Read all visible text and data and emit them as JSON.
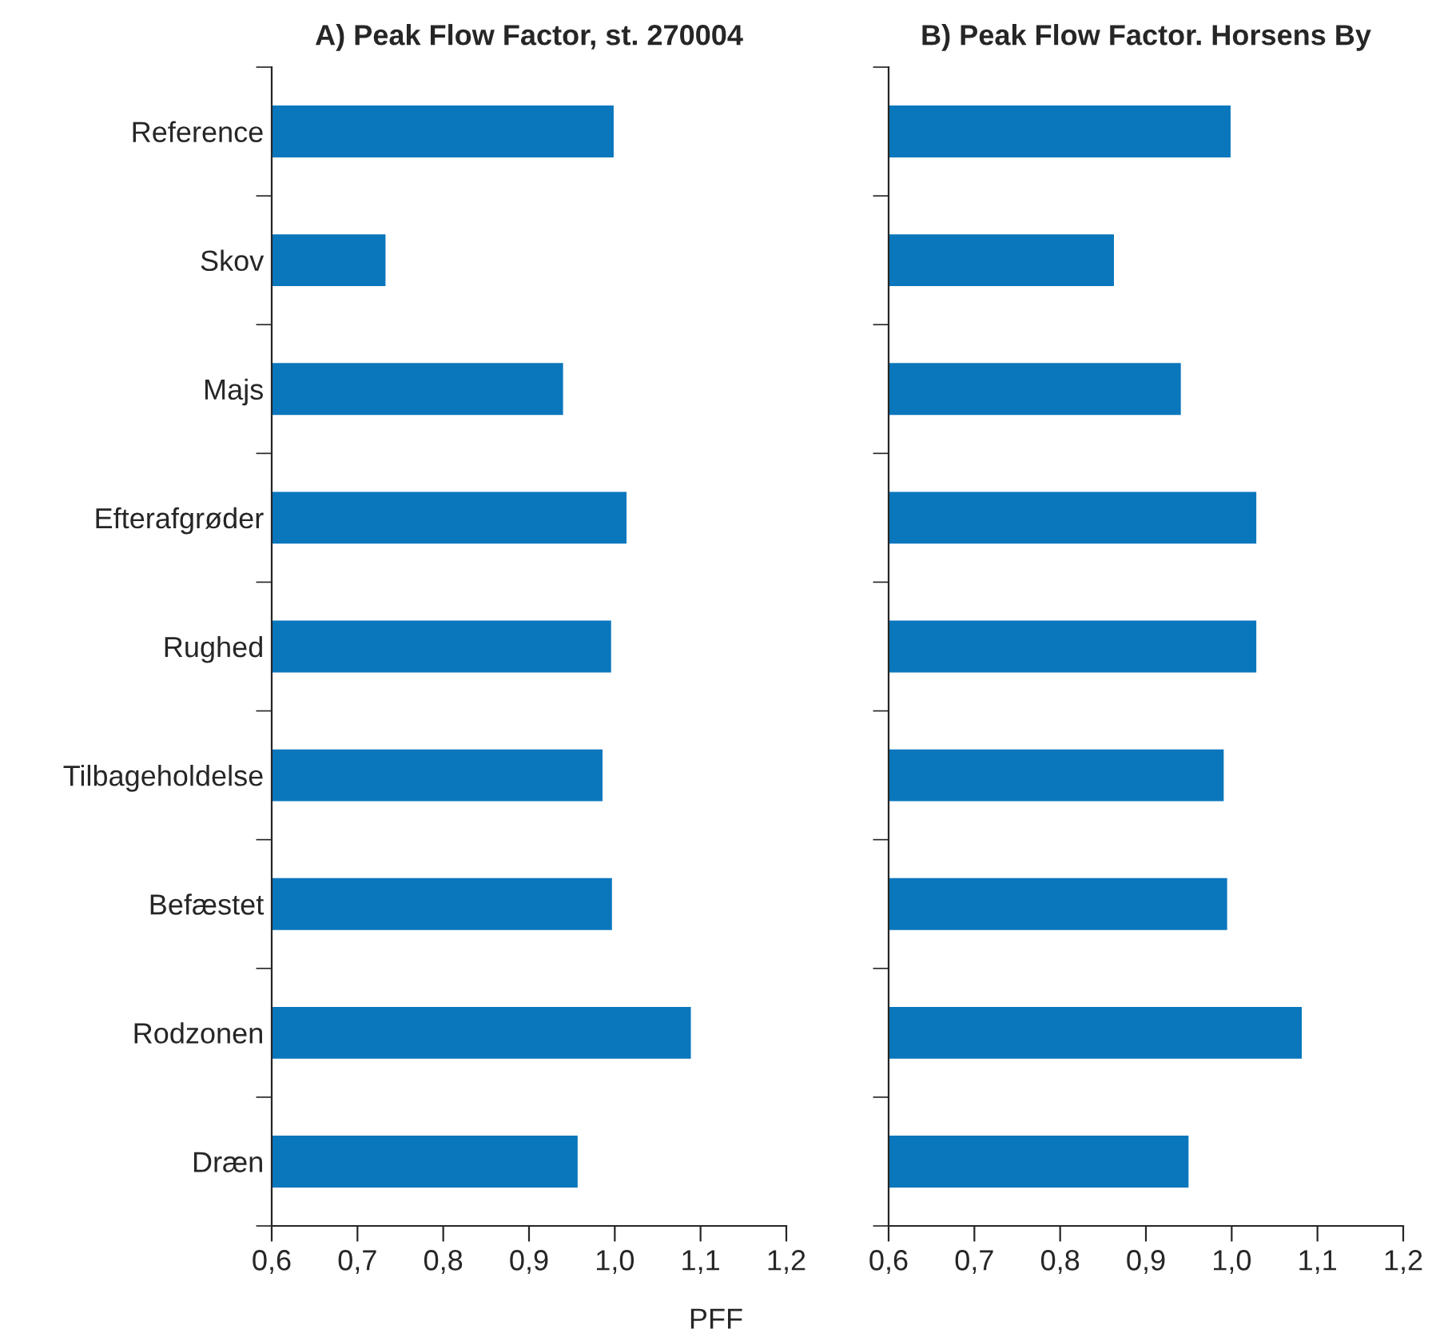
{
  "chart_data": [
    {
      "type": "bar",
      "orientation": "horizontal",
      "title": "A) Peak Flow Factor, st. 270004",
      "xlabel": "PFF",
      "categories": [
        "Reference",
        "Skov",
        "Majs",
        "Efterafgrøder",
        "Rughed",
        "Tilbageholdelse",
        "Befæstet",
        "Rodzonen",
        "Dræn"
      ],
      "values": [
        1.0,
        0.734,
        0.941,
        1.015,
        0.997,
        0.987,
        0.998,
        1.09,
        0.958
      ],
      "color": "#0a77bd",
      "xlim": [
        0.6,
        1.2
      ],
      "xticks": [
        {
          "value": 0.6,
          "label": "0,6"
        },
        {
          "value": 0.7,
          "label": "0,7"
        },
        {
          "value": 0.8,
          "label": "0,8"
        },
        {
          "value": 0.9,
          "label": "0,9"
        },
        {
          "value": 1.0,
          "label": "1,0"
        },
        {
          "value": 1.1,
          "label": "1,1"
        },
        {
          "value": 1.2,
          "label": "1,2"
        }
      ],
      "grid": false,
      "legend": false
    },
    {
      "type": "bar",
      "orientation": "horizontal",
      "title": "B) Peak Flow Factor. Horsens By",
      "categories": [
        null,
        null,
        null,
        null,
        null,
        null,
        null,
        null,
        null
      ],
      "values": [
        1.0,
        0.864,
        0.942,
        1.03,
        1.03,
        0.992,
        0.996,
        1.083,
        0.951
      ],
      "color": "#0a77bd",
      "xlim": [
        0.6,
        1.2
      ],
      "xticks": [
        {
          "value": 0.6,
          "label": "0,6"
        },
        {
          "value": 0.7,
          "label": "0,7"
        },
        {
          "value": 0.8,
          "label": "0,8"
        },
        {
          "value": 0.9,
          "label": "0,9"
        },
        {
          "value": 1.0,
          "label": "1,0"
        },
        {
          "value": 1.1,
          "label": "1,1"
        },
        {
          "value": 1.2,
          "label": "1,2"
        }
      ],
      "grid": false,
      "legend": false
    }
  ]
}
